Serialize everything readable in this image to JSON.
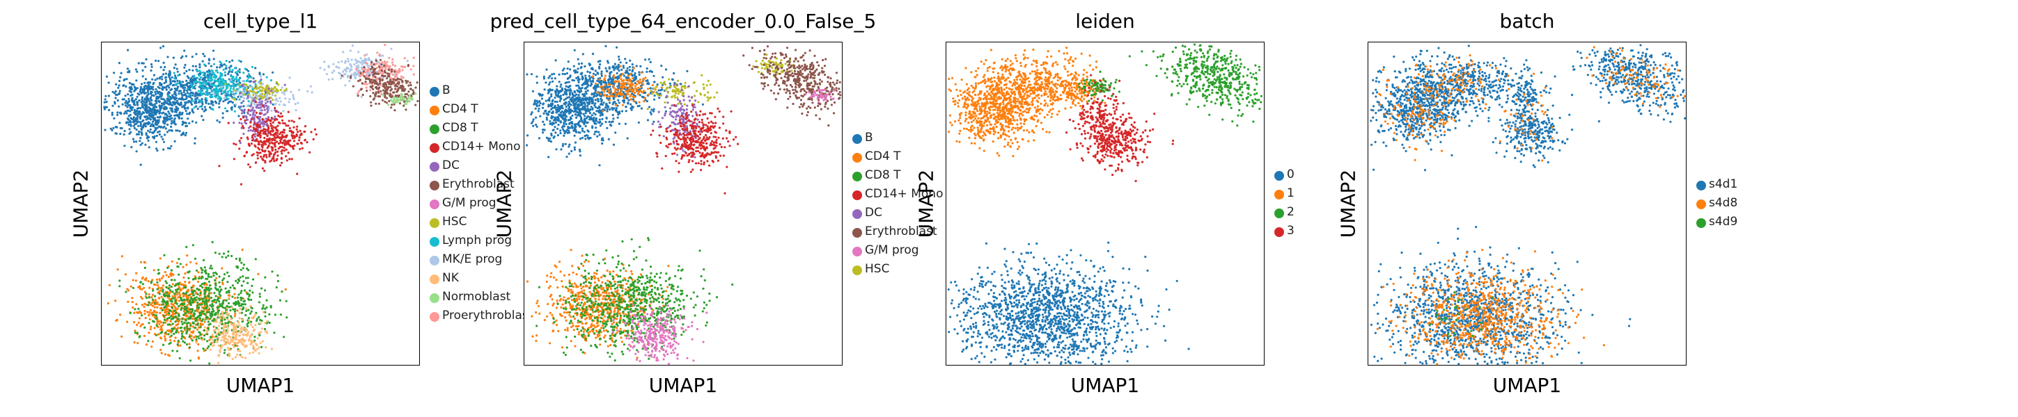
{
  "chart_data": [
    {
      "type": "scatter",
      "title": "cell_type_l1",
      "xlabel": "UMAP1",
      "ylabel": "UMAP2",
      "grid": false,
      "legend_position": "right",
      "categories": [
        "B",
        "CD4 T",
        "CD8 T",
        "CD14+ Mono",
        "DC",
        "Erythroblast",
        "G/M prog",
        "HSC",
        "Lymph prog",
        "MK/E prog",
        "NK",
        "Normoblast",
        "Proerythroblast"
      ],
      "colors": [
        "#1f77b4",
        "#ff7f0e",
        "#2ca02c",
        "#d62728",
        "#9467bd",
        "#8c564b",
        "#e377c2",
        "#bcbd22",
        "#17becf",
        "#aec7e8",
        "#ffbb78",
        "#98df8a",
        "#ff9896"
      ]
    },
    {
      "type": "scatter",
      "title": "pred_cell_type_64_encoder_0.0_False_5",
      "xlabel": "UMAP1",
      "ylabel": "UMAP2",
      "grid": false,
      "legend_position": "right",
      "categories": [
        "B",
        "CD4 T",
        "CD8 T",
        "CD14+ Mono",
        "DC",
        "Erythroblast",
        "G/M prog",
        "HSC"
      ],
      "colors": [
        "#1f77b4",
        "#ff7f0e",
        "#2ca02c",
        "#d62728",
        "#9467bd",
        "#8c564b",
        "#e377c2",
        "#bcbd22"
      ]
    },
    {
      "type": "scatter",
      "title": "leiden",
      "xlabel": "UMAP1",
      "ylabel": "UMAP2",
      "grid": false,
      "legend_position": "right",
      "categories": [
        "0",
        "1",
        "2",
        "3"
      ],
      "colors": [
        "#1f77b4",
        "#ff7f0e",
        "#2ca02c",
        "#d62728"
      ]
    },
    {
      "type": "scatter",
      "title": "batch",
      "xlabel": "UMAP1",
      "ylabel": "UMAP2",
      "grid": false,
      "legend_position": "right",
      "categories": [
        "s4d1",
        "s4d8",
        "s4d9"
      ],
      "colors": [
        "#1f77b4",
        "#ff7f0e",
        "#2ca02c"
      ]
    }
  ]
}
